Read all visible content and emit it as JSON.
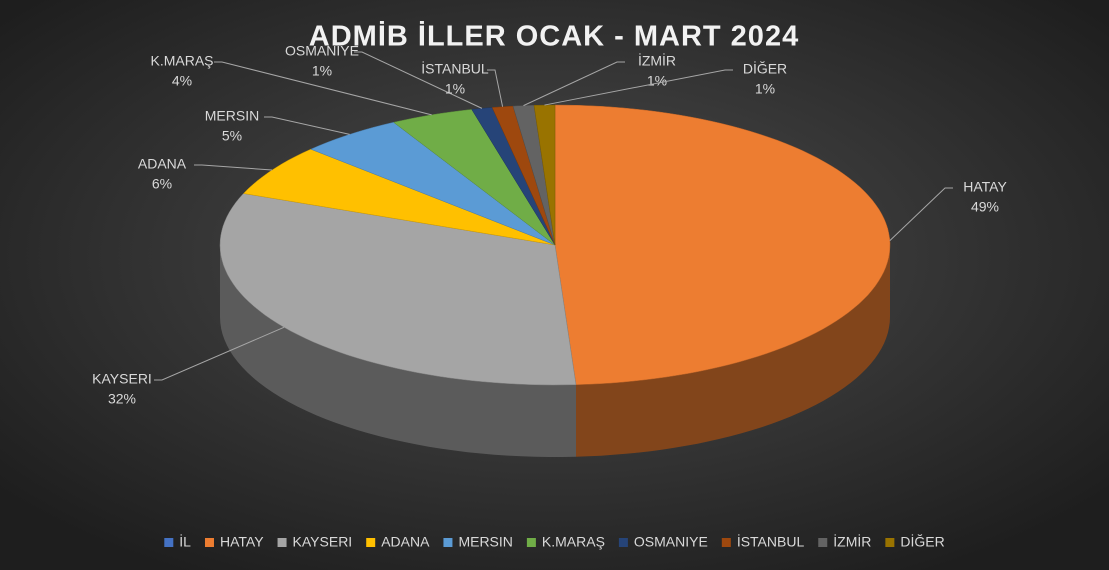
{
  "chart_data": {
    "type": "pie3d",
    "title": "ADMİB İLLER OCAK - MART 2024",
    "categories": [
      "İL",
      "HATAY",
      "KAYSERI",
      "ADANA",
      "MERSIN",
      "K.MARAŞ",
      "OSMANIYE",
      "İSTANBUL",
      "İZMİR",
      "DİĞER"
    ],
    "values": [
      null,
      49,
      32,
      6,
      5,
      4,
      1,
      1,
      1,
      1
    ],
    "value_labels": [
      null,
      "49%",
      "32%",
      "6%",
      "5%",
      "4%",
      "1%",
      "1%",
      "1%",
      "1%"
    ],
    "colors": [
      "#4472c4",
      "#ed7d31",
      "#a5a5a5",
      "#ffc000",
      "#5b9bd5",
      "#70ad47",
      "#264478",
      "#9e480e",
      "#636363",
      "#997300"
    ],
    "legend": "bottom"
  }
}
